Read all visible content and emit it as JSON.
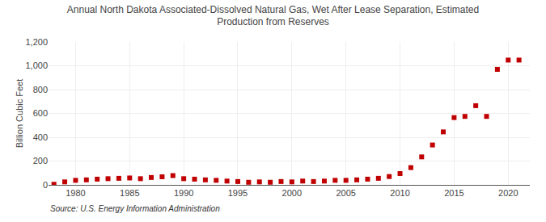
{
  "chart_data": {
    "type": "scatter",
    "title": "Annual North Dakota Associated-Dissolved Natural Gas, Wet After Lease Separation, Estimated\nProduction from Reserves",
    "ylabel": "Billion Cubic Feet",
    "annotations": [
      "Source: U.S. Energy Information Administration"
    ],
    "x": [
      1978,
      1979,
      1980,
      1981,
      1982,
      1983,
      1984,
      1985,
      1986,
      1987,
      1988,
      1989,
      1990,
      1991,
      1992,
      1993,
      1994,
      1995,
      1996,
      1997,
      1998,
      1999,
      2000,
      2001,
      2002,
      2003,
      2004,
      2005,
      2006,
      2007,
      2008,
      2009,
      2010,
      2011,
      2012,
      2013,
      2014,
      2015,
      2016,
      2017,
      2018,
      2019,
      2020,
      2021
    ],
    "values": [
      5,
      25,
      38,
      42,
      48,
      52,
      55,
      58,
      52,
      62,
      68,
      78,
      52,
      48,
      42,
      38,
      32,
      28,
      22,
      25,
      22,
      28,
      25,
      32,
      28,
      32,
      38,
      38,
      42,
      48,
      55,
      70,
      95,
      145,
      235,
      335,
      445,
      565,
      575,
      665,
      575,
      970,
      1048,
      1048
    ],
    "color": "#c00000",
    "marker": "square",
    "xlim": [
      1977.5,
      2022
    ],
    "xticks": [
      1980,
      1985,
      1990,
      1995,
      2000,
      2005,
      2010,
      2015,
      2020
    ],
    "ylim": [
      0,
      1200
    ],
    "yticks": [
      0,
      200,
      400,
      600,
      800,
      {
        "value": 1000,
        "label": "1,000"
      },
      {
        "value": 1200,
        "label": "1,200"
      }
    ],
    "grid": true
  }
}
